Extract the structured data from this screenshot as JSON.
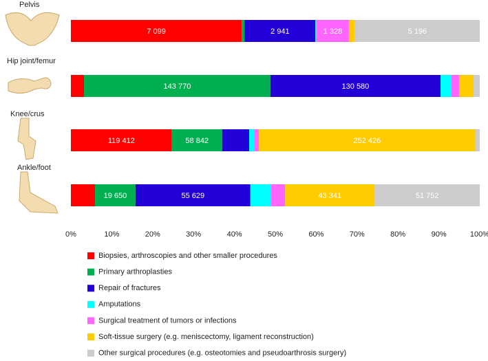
{
  "chart_data": {
    "type": "stacked-bar-horizontal",
    "categories": [
      "Pelvis",
      "Hip joint/femur",
      "Knee/crus",
      "Ankle/foot"
    ],
    "xlim": [
      0,
      100
    ],
    "xticks": [
      {
        "value": 0,
        "label": "0%"
      },
      {
        "value": 10,
        "label": "10%"
      },
      {
        "value": 20,
        "label": "20%"
      },
      {
        "value": 30,
        "label": "30%"
      },
      {
        "value": 40,
        "label": "40%"
      },
      {
        "value": 50,
        "label": "50%"
      },
      {
        "value": 60,
        "label": "60%"
      },
      {
        "value": 70,
        "label": "70%"
      },
      {
        "value": 80,
        "label": "80%"
      },
      {
        "value": 90,
        "label": "90%"
      },
      {
        "value": 100,
        "label": "100%"
      }
    ],
    "series": [
      {
        "name": "Biopsies, arthroscopies and other smaller procedures",
        "color": "#ff0000",
        "values": [
          41.8,
          3.2,
          24.7,
          5.9
        ],
        "count_labels": [
          "7 099",
          null,
          "119 412",
          null
        ]
      },
      {
        "name": "Primary arthroplasties",
        "color": "#00b050",
        "values": [
          0.7,
          45.6,
          12.3,
          9.9
        ],
        "count_labels": [
          null,
          "143 770",
          "58 842",
          "19 650"
        ]
      },
      {
        "name": "Repair of fractures",
        "color": "#2200d8",
        "values": [
          17.3,
          41.6,
          6.6,
          28.1
        ],
        "count_labels": [
          "2 941",
          "130 580",
          null,
          "55 629"
        ]
      },
      {
        "name": "Amputations",
        "color": "#00ffff",
        "values": [
          0.3,
          2.7,
          1.2,
          5.1
        ],
        "count_labels": [
          null,
          null,
          null,
          null
        ]
      },
      {
        "name": "Surgical treatment of tumors or infections",
        "color": "#ff66ff",
        "values": [
          7.9,
          1.9,
          1.2,
          3.4
        ],
        "count_labels": [
          "1 328",
          null,
          null,
          null
        ]
      },
      {
        "name": "Soft-tissue surgery (e.g. meniscectomy, ligament reconstruction)",
        "color": "#ffcc00",
        "values": [
          1.5,
          3.4,
          52.9,
          21.9
        ],
        "count_labels": [
          null,
          null,
          "252 426",
          "43 341"
        ]
      },
      {
        "name": "Other surgical procedures (e.g. osteotomies and pseudoarthrosis surgery)",
        "color": "#cccccc",
        "values": [
          30.5,
          1.6,
          1.1,
          25.7
        ],
        "count_labels": [
          "5 196",
          null,
          null,
          "51 752"
        ]
      }
    ]
  }
}
